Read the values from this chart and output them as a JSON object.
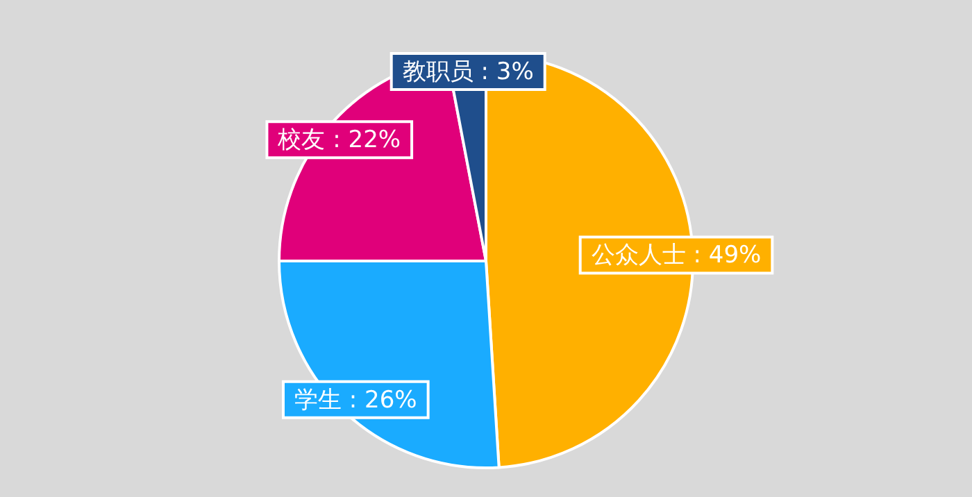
{
  "chart_data": {
    "type": "pie",
    "categories": [
      "公众人士",
      "学生",
      "校友",
      "教职员"
    ],
    "values": [
      49,
      26,
      22,
      3
    ],
    "value_labels": [
      "49%",
      "26%",
      "22%",
      "3%"
    ],
    "colors": [
      "#ffb000",
      "#1aabff",
      "#e0007a",
      "#1f4e8c"
    ],
    "legend": false
  }
}
